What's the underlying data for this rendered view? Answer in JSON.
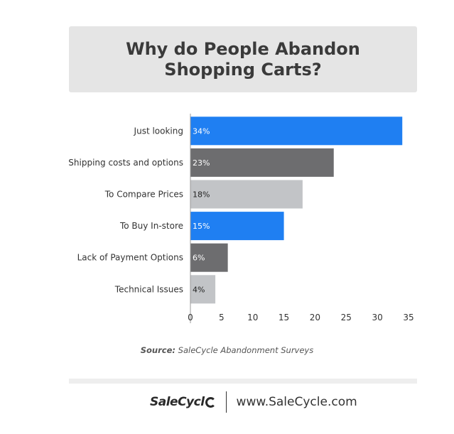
{
  "chart_data": {
    "type": "bar",
    "orientation": "horizontal",
    "title": "Why do People Abandon Shopping Carts?",
    "categories": [
      "Just looking",
      "Shipping costs and options",
      "To Compare Prices",
      "To Buy In-store",
      "Lack of Payment Options",
      "Technical Issues"
    ],
    "values": [
      34,
      23,
      18,
      15,
      6,
      4
    ],
    "data_labels": [
      "34%",
      "23%",
      "18%",
      "15%",
      "6%",
      "4%"
    ],
    "bar_colors": [
      "#1f7ff2",
      "#6d6d6f",
      "#c2c4c7",
      "#1f7ff2",
      "#6d6d6f",
      "#c2c4c7"
    ],
    "label_colors": [
      "#ffffff",
      "#ffffff",
      "#222222",
      "#ffffff",
      "#ffffff",
      "#222222"
    ],
    "xlim": [
      0,
      35
    ],
    "xticks": [
      0,
      5,
      10,
      15,
      20,
      25,
      30,
      35
    ],
    "xlabel": "",
    "ylabel": "",
    "grid": false
  },
  "source": {
    "prefix": "Source:",
    "text": "SaleCycle Abandonment Surveys"
  },
  "footer": {
    "logo_text": "SaleCycl",
    "url": "www.SaleCycle.com"
  }
}
